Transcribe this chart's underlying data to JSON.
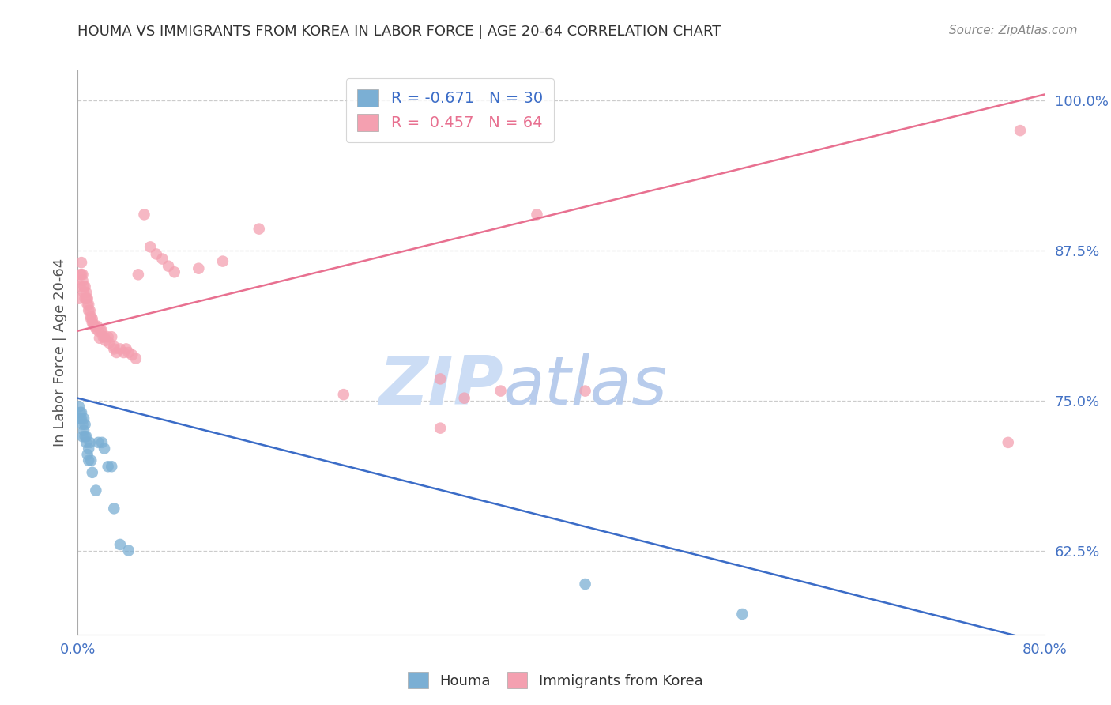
{
  "title": "HOUMA VS IMMIGRANTS FROM KOREA IN LABOR FORCE | AGE 20-64 CORRELATION CHART",
  "source": "Source: ZipAtlas.com",
  "ylabel": "In Labor Force | Age 20-64",
  "legend_blue_r": "R = -0.671",
  "legend_blue_n": "N = 30",
  "legend_pink_r": "R =  0.457",
  "legend_pink_n": "N = 64",
  "legend_label_blue": "Houma",
  "legend_label_pink": "Immigrants from Korea",
  "xmin": 0.0,
  "xmax": 0.8,
  "ymin": 0.555,
  "ymax": 1.025,
  "yticks": [
    0.625,
    0.75,
    0.875,
    1.0
  ],
  "ytick_labels": [
    "62.5%",
    "75.0%",
    "87.5%",
    "100.0%"
  ],
  "xticks": [
    0.0,
    0.1,
    0.2,
    0.3,
    0.4,
    0.5,
    0.6,
    0.7,
    0.8
  ],
  "xtick_labels": [
    "0.0%",
    "",
    "",
    "",
    "",
    "",
    "",
    "",
    "80.0%"
  ],
  "blue_color": "#7bafd4",
  "pink_color": "#f4a0b0",
  "blue_line_color": "#3b6cc7",
  "pink_line_color": "#e87090",
  "watermark_color": "#ccddf0",
  "blue_dots_x": [
    0.001,
    0.002,
    0.002,
    0.003,
    0.003,
    0.004,
    0.004,
    0.005,
    0.005,
    0.006,
    0.006,
    0.007,
    0.007,
    0.008,
    0.009,
    0.009,
    0.01,
    0.011,
    0.012,
    0.015,
    0.017,
    0.02,
    0.022,
    0.025,
    0.028,
    0.03,
    0.035,
    0.042,
    0.42,
    0.55
  ],
  "blue_dots_y": [
    0.745,
    0.74,
    0.735,
    0.74,
    0.735,
    0.73,
    0.72,
    0.735,
    0.725,
    0.73,
    0.72,
    0.72,
    0.715,
    0.705,
    0.71,
    0.7,
    0.715,
    0.7,
    0.69,
    0.675,
    0.715,
    0.715,
    0.71,
    0.695,
    0.695,
    0.66,
    0.63,
    0.625,
    0.597,
    0.572
  ],
  "pink_dots_x": [
    0.001,
    0.002,
    0.002,
    0.003,
    0.003,
    0.004,
    0.004,
    0.005,
    0.005,
    0.006,
    0.006,
    0.007,
    0.007,
    0.008,
    0.008,
    0.009,
    0.009,
    0.01,
    0.011,
    0.011,
    0.012,
    0.012,
    0.013,
    0.014,
    0.015,
    0.016,
    0.017,
    0.018,
    0.019,
    0.02,
    0.021,
    0.022,
    0.023,
    0.025,
    0.026,
    0.028,
    0.03,
    0.03,
    0.032,
    0.035,
    0.038,
    0.04,
    0.042,
    0.045,
    0.048,
    0.05,
    0.055,
    0.06,
    0.065,
    0.07,
    0.075,
    0.08,
    0.1,
    0.12,
    0.15,
    0.22,
    0.3,
    0.3,
    0.32,
    0.35,
    0.38,
    0.42,
    0.77,
    0.78
  ],
  "pink_dots_y": [
    0.835,
    0.855,
    0.845,
    0.865,
    0.855,
    0.855,
    0.85,
    0.845,
    0.84,
    0.845,
    0.835,
    0.84,
    0.835,
    0.835,
    0.83,
    0.83,
    0.825,
    0.825,
    0.82,
    0.818,
    0.818,
    0.815,
    0.813,
    0.812,
    0.81,
    0.812,
    0.808,
    0.802,
    0.808,
    0.808,
    0.803,
    0.803,
    0.8,
    0.803,
    0.798,
    0.803,
    0.795,
    0.793,
    0.79,
    0.793,
    0.79,
    0.793,
    0.79,
    0.788,
    0.785,
    0.855,
    0.905,
    0.878,
    0.872,
    0.868,
    0.862,
    0.857,
    0.86,
    0.866,
    0.893,
    0.755,
    0.768,
    0.727,
    0.752,
    0.758,
    0.905,
    0.758,
    0.715,
    0.975
  ],
  "blue_line_x": [
    0.0,
    0.8
  ],
  "blue_line_y": [
    0.752,
    0.548
  ],
  "pink_line_x": [
    0.0,
    0.8
  ],
  "pink_line_y": [
    0.808,
    1.005
  ],
  "bg_color": "#ffffff",
  "grid_color": "#cccccc",
  "axis_color": "#aaaaaa",
  "title_color": "#333333",
  "tick_color": "#4472c4",
  "ylabel_color": "#555555",
  "source_color": "#888888"
}
